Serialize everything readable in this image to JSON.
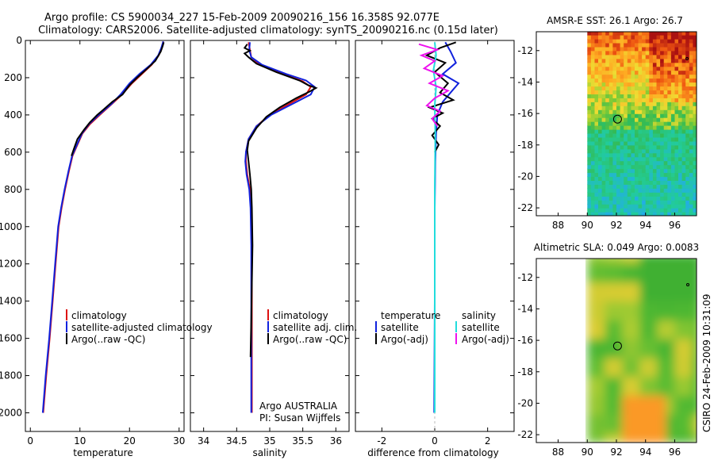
{
  "header": {
    "title_line1": "Argo profile: CS 5900034_227 15-Feb-2009 20090216_156 16.358S 92.077E",
    "title_line2": "Climatology: CARS2006. Satellite-adjusted climatology: synTS_20090216.nc (0.15d later)"
  },
  "footer": {
    "credit": "CSIRO 24-Feb-2009 10:31:09",
    "argo_label": "Argo AUSTRALIA",
    "pi_label": "PI: Susan Wijffels"
  },
  "colors": {
    "climatology": "#dd1111",
    "satellite": "#1122dd",
    "argo": "#000000",
    "satellite_sal": "#22dddd",
    "argo_sal": "#ee11ee"
  },
  "chart_data": [
    {
      "type": "line",
      "id": "temperature_profile",
      "xlabel": "temperature",
      "ylabel": "",
      "xlim": [
        -1,
        31
      ],
      "ylim": [
        2100,
        0
      ],
      "xticks": [
        0,
        10,
        20,
        30
      ],
      "yticks": [
        0,
        200,
        400,
        600,
        800,
        1000,
        1200,
        1400,
        1600,
        1800,
        2000
      ],
      "legend": [
        "climatology",
        "satellite-adjusted climatology",
        "Argo(..raw -QC)"
      ],
      "series": [
        {
          "name": "climatology",
          "color_key": "climatology",
          "points": [
            [
              26.8,
              5
            ],
            [
              26.5,
              40
            ],
            [
              25.9,
              80
            ],
            [
              24.5,
              130
            ],
            [
              22.5,
              180
            ],
            [
              20.5,
              230
            ],
            [
              18.5,
              290
            ],
            [
              16.5,
              340
            ],
            [
              14.0,
              400
            ],
            [
              12.0,
              450
            ],
            [
              10.5,
              500
            ],
            [
              9.5,
              560
            ],
            [
              8.5,
              620
            ],
            [
              7.8,
              700
            ],
            [
              7.0,
              800
            ],
            [
              6.3,
              900
            ],
            [
              5.7,
              1000
            ],
            [
              5.1,
              1200
            ],
            [
              4.5,
              1400
            ],
            [
              3.9,
              1600
            ],
            [
              3.2,
              1800
            ],
            [
              2.6,
              2000
            ]
          ]
        },
        {
          "name": "satellite-adjusted climatology",
          "color_key": "satellite",
          "points": [
            [
              26.8,
              5
            ],
            [
              26.4,
              40
            ],
            [
              25.8,
              80
            ],
            [
              24.3,
              130
            ],
            [
              22.0,
              180
            ],
            [
              20.0,
              230
            ],
            [
              18.2,
              290
            ],
            [
              16.4,
              340
            ],
            [
              13.8,
              400
            ],
            [
              11.8,
              450
            ],
            [
              10.4,
              500
            ],
            [
              9.4,
              560
            ],
            [
              8.4,
              620
            ],
            [
              7.7,
              700
            ],
            [
              6.9,
              800
            ],
            [
              6.2,
              900
            ],
            [
              5.6,
              1000
            ],
            [
              5.0,
              1200
            ],
            [
              4.4,
              1400
            ],
            [
              3.8,
              1600
            ],
            [
              3.1,
              1800
            ],
            [
              2.5,
              2000
            ]
          ]
        },
        {
          "name": "Argo(..raw -QC)",
          "color_key": "argo",
          "points": [
            [
              26.9,
              10
            ],
            [
              26.7,
              30
            ],
            [
              26.3,
              60
            ],
            [
              25.2,
              110
            ],
            [
              23.6,
              150
            ],
            [
              21.5,
              200
            ],
            [
              20.0,
              240
            ],
            [
              18.6,
              290
            ],
            [
              16.5,
              330
            ],
            [
              14.8,
              370
            ],
            [
              13.5,
              400
            ],
            [
              12.0,
              440
            ],
            [
              10.8,
              480
            ],
            [
              9.5,
              530
            ],
            [
              8.8,
              580
            ],
            [
              8.3,
              620
            ]
          ]
        }
      ]
    },
    {
      "type": "line",
      "id": "salinity_profile",
      "xlabel": "salinity",
      "xlim": [
        33.8,
        36.2
      ],
      "ylim": [
        2100,
        0
      ],
      "xticks": [
        34,
        34.5,
        35,
        35.5,
        36
      ],
      "xtick_labels": [
        "34",
        "34.5",
        "35",
        "35.5",
        "36"
      ],
      "legend": [
        "climatology",
        "satellite adj. clim.",
        "Argo(..raw -QC)"
      ],
      "series": [
        {
          "name": "climatology",
          "color_key": "climatology",
          "points": [
            [
              34.68,
              10
            ],
            [
              34.7,
              50
            ],
            [
              34.72,
              90
            ],
            [
              34.85,
              130
            ],
            [
              35.2,
              180
            ],
            [
              35.5,
              220
            ],
            [
              35.62,
              250
            ],
            [
              35.55,
              290
            ],
            [
              35.3,
              340
            ],
            [
              35.0,
              400
            ],
            [
              34.8,
              460
            ],
            [
              34.68,
              530
            ],
            [
              34.64,
              600
            ],
            [
              34.64,
              650
            ],
            [
              34.66,
              720
            ],
            [
              34.7,
              800
            ],
            [
              34.72,
              900
            ],
            [
              34.73,
              1100
            ],
            [
              34.73,
              1400
            ],
            [
              34.73,
              1700
            ],
            [
              34.73,
              2000
            ]
          ]
        },
        {
          "name": "satellite adj. clim.",
          "color_key": "satellite",
          "points": [
            [
              34.7,
              10
            ],
            [
              34.69,
              50
            ],
            [
              34.72,
              90
            ],
            [
              34.88,
              130
            ],
            [
              35.25,
              180
            ],
            [
              35.55,
              215
            ],
            [
              35.68,
              250
            ],
            [
              35.62,
              290
            ],
            [
              35.35,
              340
            ],
            [
              35.02,
              400
            ],
            [
              34.8,
              460
            ],
            [
              34.68,
              530
            ],
            [
              34.64,
              600
            ],
            [
              34.63,
              650
            ],
            [
              34.65,
              720
            ],
            [
              34.69,
              800
            ],
            [
              34.71,
              900
            ],
            [
              34.72,
              1100
            ],
            [
              34.72,
              1400
            ],
            [
              34.72,
              1700
            ],
            [
              34.72,
              2000
            ]
          ]
        },
        {
          "name": "Argo(..raw -QC)",
          "color_key": "argo",
          "points": [
            [
              34.66,
              20
            ],
            [
              34.62,
              40
            ],
            [
              34.7,
              55
            ],
            [
              34.62,
              70
            ],
            [
              34.68,
              90
            ],
            [
              34.8,
              125
            ],
            [
              35.1,
              170
            ],
            [
              35.45,
              215
            ],
            [
              35.58,
              240
            ],
            [
              35.7,
              255
            ],
            [
              35.6,
              275
            ],
            [
              35.4,
              310
            ],
            [
              35.15,
              360
            ],
            [
              34.95,
              410
            ],
            [
              34.8,
              470
            ],
            [
              34.68,
              540
            ],
            [
              34.66,
              590
            ],
            [
              34.68,
              650
            ],
            [
              34.7,
              720
            ],
            [
              34.72,
              800
            ],
            [
              34.73,
              900
            ],
            [
              34.74,
              1100
            ],
            [
              34.73,
              1300
            ],
            [
              34.72,
              1500
            ],
            [
              34.71,
              1700
            ]
          ]
        }
      ]
    },
    {
      "type": "line",
      "id": "difference_profile",
      "xlabel": "difference from climatology",
      "xlim": [
        -3,
        3
      ],
      "ylim": [
        2100,
        0
      ],
      "xticks": [
        -2,
        0,
        2
      ],
      "legend": [
        "temperature",
        "satellite",
        "Argo(-adj)",
        "salinity",
        "satellite",
        "Argo(-adj)"
      ],
      "series": [
        {
          "name": "temperature satellite",
          "color_key": "satellite",
          "points": [
            [
              0.4,
              10
            ],
            [
              0.6,
              60
            ],
            [
              0.8,
              120
            ],
            [
              0.3,
              180
            ],
            [
              0.9,
              230
            ],
            [
              0.6,
              280
            ],
            [
              0.3,
              330
            ],
            [
              0.1,
              400
            ],
            [
              0.05,
              500
            ],
            [
              0.02,
              650
            ],
            [
              0.0,
              900
            ],
            [
              0.0,
              1400
            ],
            [
              -0.02,
              2000
            ]
          ]
        },
        {
          "name": "temperature Argo(-adj)",
          "color_key": "argo",
          "points": [
            [
              0.8,
              10
            ],
            [
              0.2,
              40
            ],
            [
              -0.3,
              80
            ],
            [
              0.4,
              120
            ],
            [
              0.0,
              170
            ],
            [
              0.5,
              230
            ],
            [
              0.2,
              280
            ],
            [
              0.7,
              320
            ],
            [
              -0.2,
              360
            ],
            [
              0.3,
              390
            ],
            [
              -0.1,
              420
            ],
            [
              0.2,
              460
            ],
            [
              -0.1,
              510
            ],
            [
              0.15,
              560
            ],
            [
              0.0,
              600
            ]
          ]
        },
        {
          "name": "salinity satellite",
          "color_key": "satellite_sal",
          "points": [
            [
              0.0,
              10
            ],
            [
              0.05,
              80
            ],
            [
              -0.05,
              160
            ],
            [
              0.05,
              250
            ],
            [
              0.0,
              350
            ],
            [
              0.02,
              500
            ],
            [
              0.0,
              800
            ],
            [
              0.0,
              1200
            ],
            [
              0.0,
              1600
            ],
            [
              0.0,
              2000
            ]
          ]
        },
        {
          "name": "salinity Argo(-adj)",
          "color_key": "argo_sal",
          "points": [
            [
              -0.6,
              20
            ],
            [
              0.1,
              50
            ],
            [
              -0.5,
              80
            ],
            [
              0.0,
              110
            ],
            [
              -0.4,
              150
            ],
            [
              0.3,
              190
            ],
            [
              -0.2,
              230
            ],
            [
              0.5,
              270
            ],
            [
              0.0,
              310
            ],
            [
              -0.3,
              350
            ],
            [
              0.2,
              380
            ],
            [
              -0.1,
              420
            ],
            [
              0.1,
              460
            ]
          ]
        }
      ]
    },
    {
      "type": "heatmap",
      "id": "amsre_sst_map",
      "title": "AMSR-E SST: 26.1  Argo: 26.7",
      "xlim": [
        86.5,
        97.5
      ],
      "ylim": [
        -22.5,
        -10.8
      ],
      "xticks": [
        88,
        90,
        92,
        94,
        96
      ],
      "yticks": [
        -12,
        -14,
        -16,
        -18,
        -20,
        -22
      ],
      "data_lon_range": [
        90,
        97.5
      ],
      "float_position": {
        "lon": 92.077,
        "lat": -16.358
      }
    },
    {
      "type": "heatmap",
      "id": "altimetric_sla_map",
      "title": "Altimetric SLA: 0.049  Argo: 0.0083",
      "xlim": [
        86.5,
        97.5
      ],
      "ylim": [
        -22.5,
        -10.8
      ],
      "xticks": [
        88,
        90,
        92,
        94,
        96
      ],
      "yticks": [
        -12,
        -14,
        -16,
        -18,
        -20,
        -22
      ],
      "data_lon_range": [
        90,
        97.5
      ],
      "float_position": {
        "lon": 92.077,
        "lat": -16.358
      }
    }
  ]
}
